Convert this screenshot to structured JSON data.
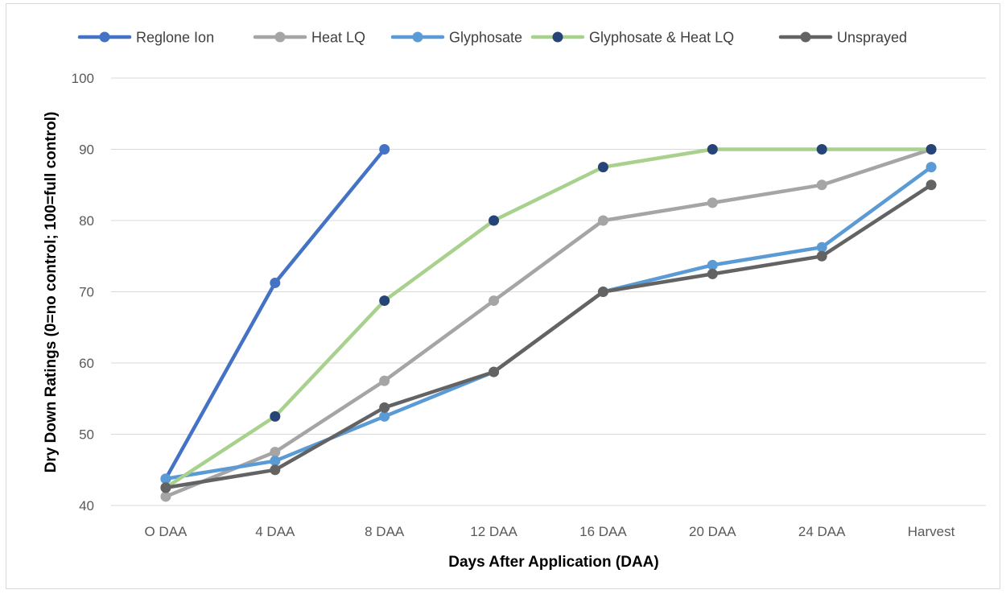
{
  "chart_data": {
    "type": "line",
    "title": "",
    "xlabel": "Days After Application (DAA)",
    "ylabel": "Dry Down Ratings (0=no control; 100=full control)",
    "categories": [
      "O DAA",
      "4 DAA",
      "8 DAA",
      "12  DAA",
      "16 DAA",
      "20 DAA",
      "24 DAA",
      "Harvest"
    ],
    "ylim": [
      40,
      100
    ],
    "yticks": [
      40,
      50,
      60,
      70,
      80,
      90,
      100
    ],
    "grid": "horizontal",
    "legend_position": "top",
    "series": [
      {
        "name": "Reglone Ion",
        "values": [
          43.75,
          71.25,
          90,
          null,
          null,
          null,
          null,
          null
        ],
        "line_color": "#4472c4",
        "marker_color": "#4472c4"
      },
      {
        "name": "Heat LQ",
        "values": [
          41.25,
          47.5,
          57.5,
          68.75,
          80,
          82.5,
          85,
          90
        ],
        "line_color": "#a5a5a5",
        "marker_color": "#a5a5a5"
      },
      {
        "name": "Glyphosate",
        "values": [
          43.75,
          46.25,
          52.5,
          58.75,
          70,
          73.75,
          76.25,
          87.5
        ],
        "line_color": "#5b9bd5",
        "marker_color": "#5b9bd5"
      },
      {
        "name": "Glyphosate & Heat LQ",
        "values": [
          42.5,
          52.5,
          68.75,
          80,
          87.5,
          90,
          90,
          90
        ],
        "line_color": "#a9d18e",
        "marker_color": "#264478"
      },
      {
        "name": "Unsprayed",
        "values": [
          42.5,
          45,
          53.75,
          58.75,
          70,
          72.5,
          75,
          85
        ],
        "line_color": "#636363",
        "marker_color": "#636363"
      }
    ]
  }
}
